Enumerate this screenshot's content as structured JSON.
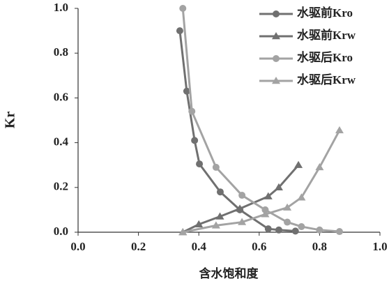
{
  "chart_data": {
    "type": "line",
    "x_label": "含水饱和度",
    "y_label": "Kr",
    "xlim": [
      0,
      1
    ],
    "ylim": [
      0,
      1
    ],
    "xticks": [
      {
        "value": 0,
        "label": "0.0"
      },
      {
        "value": 0.2,
        "label": "0.2"
      },
      {
        "value": 0.4,
        "label": "0.4"
      },
      {
        "value": 0.6,
        "label": "0.6"
      },
      {
        "value": 0.8,
        "label": "0.8"
      },
      {
        "value": 1,
        "label": "1.0"
      }
    ],
    "yticks": [
      {
        "value": 0,
        "label": "0.0"
      },
      {
        "value": 0.2,
        "label": "0.2"
      },
      {
        "value": 0.4,
        "label": "0.4"
      },
      {
        "value": 0.6,
        "label": "0.6"
      },
      {
        "value": 0.8,
        "label": "0.8"
      },
      {
        "value": 1,
        "label": "1.0"
      }
    ],
    "grid": false,
    "legend": "upper right",
    "series": [
      {
        "name": "水驱前Kro",
        "color": "#707070",
        "marker": "circle",
        "x": [
          0.337,
          0.36,
          0.386,
          0.402,
          0.471,
          0.536,
          0.63,
          0.665,
          0.72
        ],
        "values": [
          0.9,
          0.63,
          0.41,
          0.305,
          0.18,
          0.1,
          0.015,
          0.01,
          0.005
        ]
      },
      {
        "name": "水驱前Krw",
        "color": "#707070",
        "marker": "triangle",
        "x": [
          0.347,
          0.4,
          0.47,
          0.536,
          0.63,
          0.665,
          0.73
        ],
        "values": [
          0,
          0.035,
          0.07,
          0.105,
          0.16,
          0.2,
          0.3
        ]
      },
      {
        "name": "水驱后Kro",
        "color": "#a3a3a3",
        "marker": "circle",
        "x": [
          0.347,
          0.377,
          0.457,
          0.543,
          0.62,
          0.693,
          0.74,
          0.8,
          0.866
        ],
        "values": [
          1.0,
          0.54,
          0.29,
          0.165,
          0.1,
          0.045,
          0.025,
          0.01,
          0.003
        ]
      },
      {
        "name": "水驱后Krw",
        "color": "#a3a3a3",
        "marker": "triangle",
        "x": [
          0.347,
          0.457,
          0.543,
          0.62,
          0.693,
          0.74,
          0.8,
          0.866
        ],
        "values": [
          0,
          0.03,
          0.045,
          0.08,
          0.11,
          0.155,
          0.29,
          0.455
        ]
      }
    ]
  }
}
